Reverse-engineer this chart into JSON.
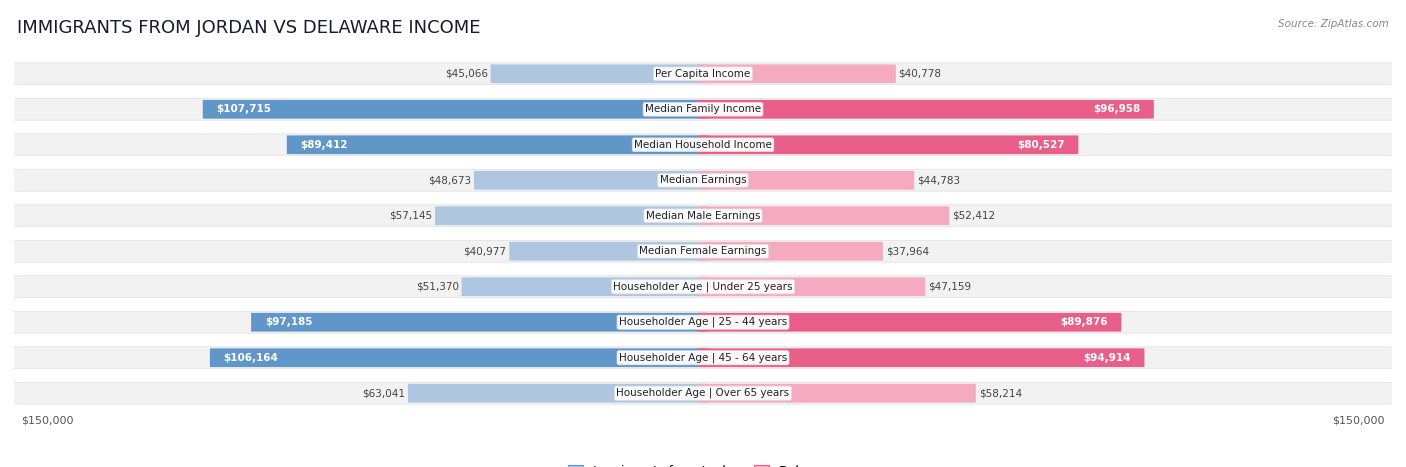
{
  "title": "IMMIGRANTS FROM JORDAN VS DELAWARE INCOME",
  "source": "Source: ZipAtlas.com",
  "categories": [
    "Per Capita Income",
    "Median Family Income",
    "Median Household Income",
    "Median Earnings",
    "Median Male Earnings",
    "Median Female Earnings",
    "Householder Age | Under 25 years",
    "Householder Age | 25 - 44 years",
    "Householder Age | 45 - 64 years",
    "Householder Age | Over 65 years"
  ],
  "jordan_values": [
    45066,
    107715,
    89412,
    48673,
    57145,
    40977,
    51370,
    97185,
    106164,
    63041
  ],
  "delaware_values": [
    40778,
    96958,
    80527,
    44783,
    52412,
    37964,
    47159,
    89876,
    94914,
    58214
  ],
  "jordan_labels": [
    "$45,066",
    "$107,715",
    "$89,412",
    "$48,673",
    "$57,145",
    "$40,977",
    "$51,370",
    "$97,185",
    "$106,164",
    "$63,041"
  ],
  "delaware_labels": [
    "$40,778",
    "$96,958",
    "$80,527",
    "$44,783",
    "$52,412",
    "$37,964",
    "$47,159",
    "$89,876",
    "$94,914",
    "$58,214"
  ],
  "jordan_color_light": "#aec6e0",
  "jordan_color_dark": "#6096c8",
  "delaware_color_light": "#f5aac0",
  "delaware_color_dark": "#e8608a",
  "max_value": 150000,
  "background_color": "#ffffff",
  "row_bg_color": "#f2f2f2",
  "title_fontsize": 13,
  "label_fontsize": 8,
  "white_text_threshold": 65000
}
